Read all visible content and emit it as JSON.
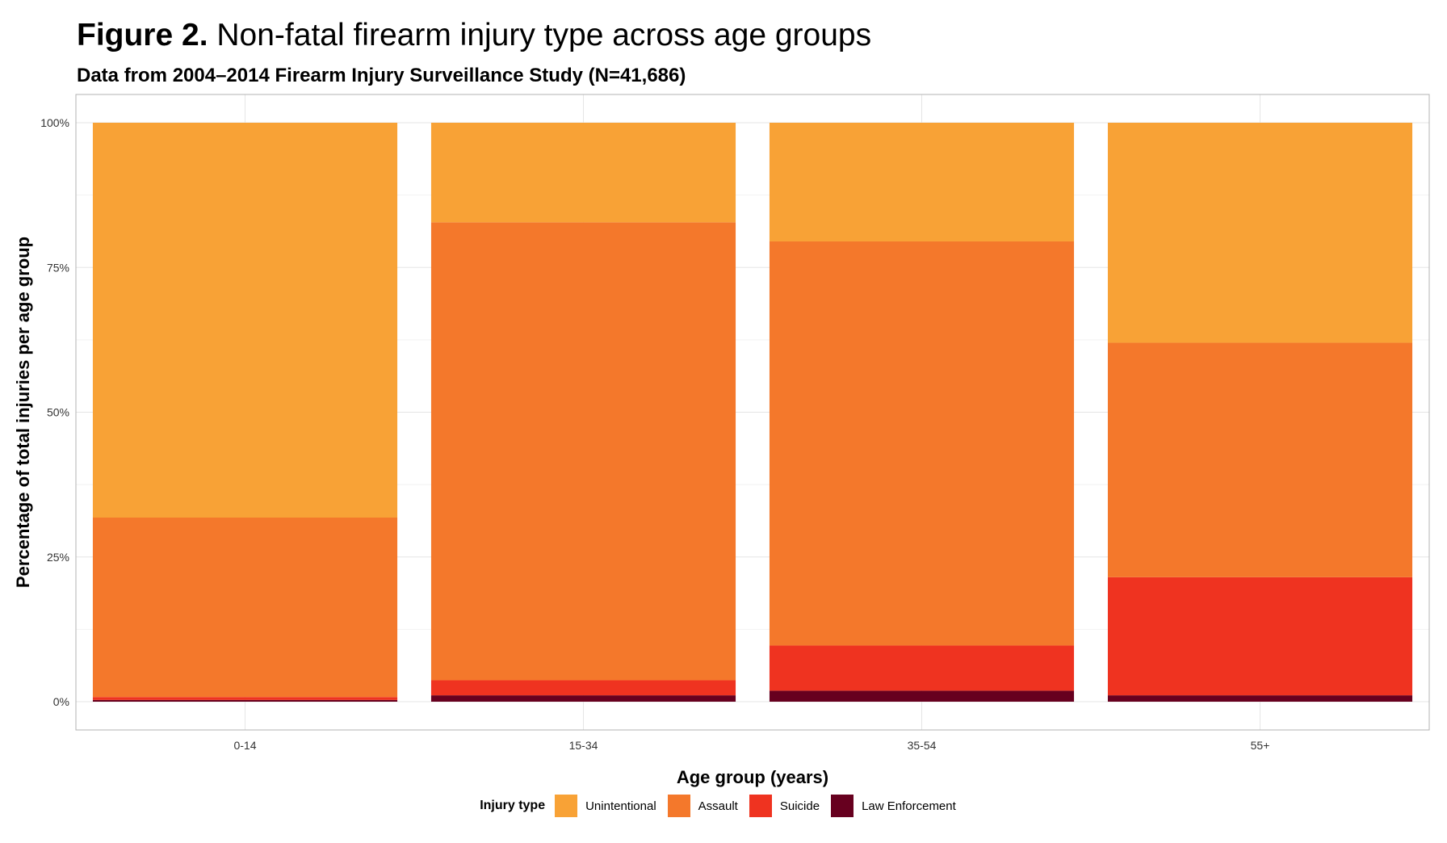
{
  "title": {
    "prefix": "Figure 2.",
    "text": "Non-fatal firearm injury type across age groups"
  },
  "subtitle": "Data from 2004–2014 Firearm Injury Surveillance Study (N=41,686)",
  "chart_data": {
    "type": "bar",
    "stacked": true,
    "xlabel": "Age group (years)",
    "ylabel": "Percentage of total injuries per age group",
    "ylim": [
      0,
      100
    ],
    "yticks": [
      "0%",
      "25%",
      "50%",
      "75%",
      "100%"
    ],
    "grid": true,
    "legend_position": "bottom",
    "legend_title": "Injury type",
    "categories": [
      "0-14",
      "15-34",
      "35-54",
      "55+"
    ],
    "series": [
      {
        "name": "Law Enforcement",
        "color": "#67001f",
        "values": [
          0.3,
          1.1,
          1.9,
          1.1
        ]
      },
      {
        "name": "Suicide",
        "color": "#ef3320",
        "values": [
          0.5,
          2.6,
          7.8,
          20.4
        ]
      },
      {
        "name": "Assault",
        "color": "#f4782b",
        "values": [
          31.0,
          79.1,
          69.8,
          40.5
        ]
      },
      {
        "name": "Unintentional",
        "color": "#f8a236",
        "values": [
          68.2,
          17.2,
          20.5,
          38.0
        ]
      }
    ],
    "legend_order": [
      "Unintentional",
      "Assault",
      "Suicide",
      "Law Enforcement"
    ]
  }
}
